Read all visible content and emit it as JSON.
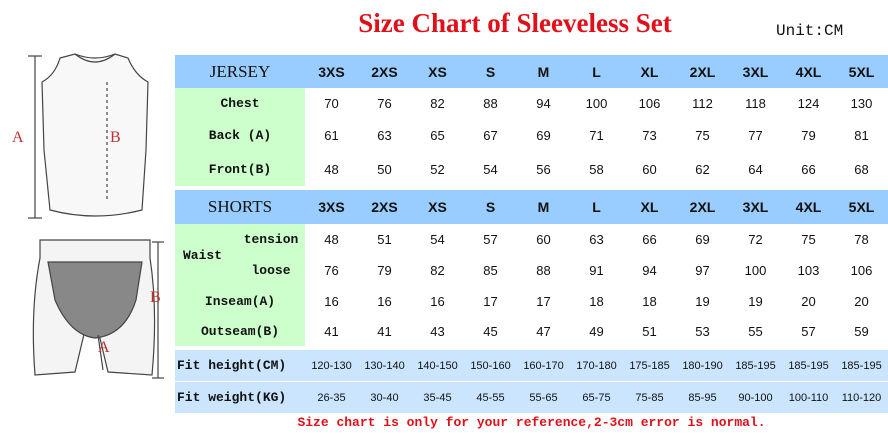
{
  "title": "Size Chart of Sleeveless Set",
  "unit": "Unit:CM",
  "figure": {
    "jersey_labels": [
      "A",
      "B"
    ],
    "shorts_labels": [
      "B",
      "A"
    ]
  },
  "jersey": {
    "heading": "JERSEY",
    "sizes": [
      "3XS",
      "2XS",
      "XS",
      "S",
      "M",
      "L",
      "XL",
      "2XL",
      "3XL",
      "4XL",
      "5XL"
    ],
    "rows": [
      {
        "label": "Chest",
        "values": [
          70,
          76,
          82,
          88,
          94,
          100,
          106,
          112,
          118,
          124,
          130
        ]
      },
      {
        "label": "Back (A)",
        "values": [
          61,
          63,
          65,
          67,
          69,
          71,
          73,
          75,
          77,
          79,
          81
        ]
      },
      {
        "label": "Front(B)",
        "values": [
          48,
          50,
          52,
          54,
          56,
          58,
          60,
          62,
          64,
          66,
          68
        ]
      }
    ]
  },
  "shorts": {
    "heading": "SHORTS",
    "sizes": [
      "3XS",
      "2XS",
      "XS",
      "S",
      "M",
      "L",
      "XL",
      "2XL",
      "3XL",
      "4XL",
      "5XL"
    ],
    "waist": "Waist",
    "rows": [
      {
        "label": "tension",
        "values": [
          48,
          51,
          54,
          57,
          60,
          63,
          66,
          69,
          72,
          75,
          78
        ]
      },
      {
        "label": "loose",
        "values": [
          76,
          79,
          82,
          85,
          88,
          91,
          94,
          97,
          100,
          103,
          106
        ]
      },
      {
        "label": "Inseam(A)",
        "values": [
          16,
          16,
          16,
          17,
          17,
          18,
          18,
          19,
          19,
          20,
          20
        ]
      },
      {
        "label": "Outseam(B)",
        "values": [
          41,
          41,
          43,
          45,
          47,
          49,
          51,
          53,
          55,
          57,
          59
        ]
      }
    ]
  },
  "fit": [
    {
      "label": "Fit height(CM)",
      "values": [
        "120-130",
        "130-140",
        "140-150",
        "150-160",
        "160-170",
        "170-180",
        "175-185",
        "180-190",
        "185-195",
        "185-195",
        "185-195"
      ]
    },
    {
      "label": "Fit weight(KG)",
      "values": [
        "26-35",
        "30-40",
        "35-45",
        "45-55",
        "55-65",
        "65-75",
        "75-85",
        "85-95",
        "90-100",
        "100-110",
        "110-120"
      ]
    }
  ],
  "note": "Size chart is only for your reference,2-3cm error is normal."
}
